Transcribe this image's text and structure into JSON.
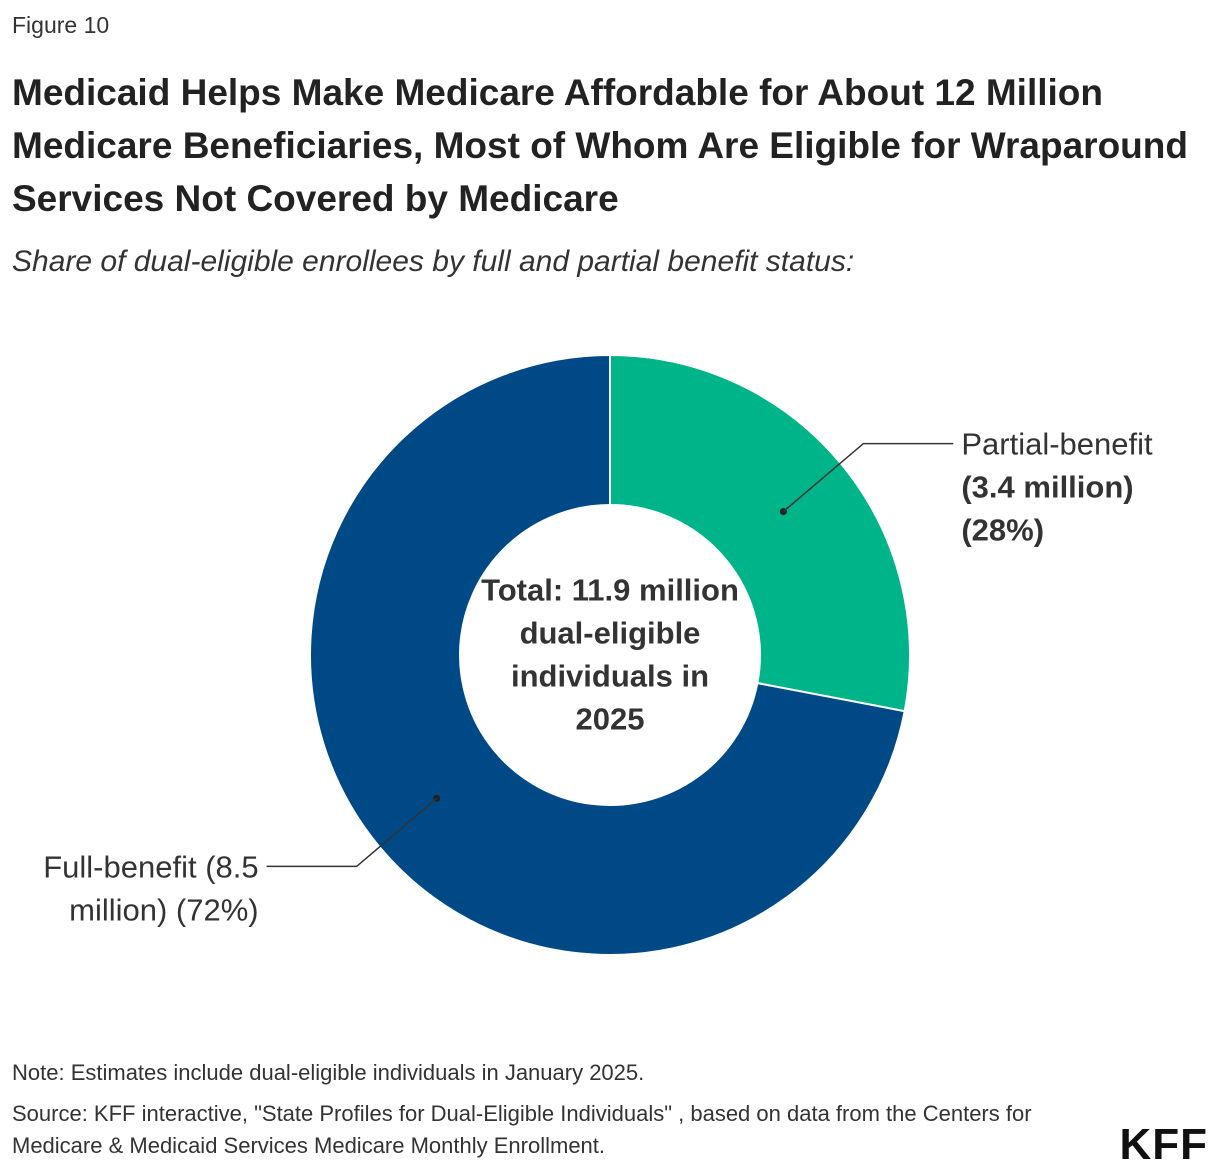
{
  "figure_label": "Figure 10",
  "title": "Medicaid Helps Make Medicare Affordable for About 12 Million Medicare Beneficiaries, Most of Whom Are Eligible for Wraparound Services Not Covered by Medicare",
  "subtitle": "Share of dual-eligible enrollees by full and partial benefit status:",
  "chart_data": {
    "type": "pie",
    "variant": "donut",
    "center_label": [
      "Total: 11.9 million",
      "dual-eligible",
      "individuals in",
      "2025"
    ],
    "slices": [
      {
        "name": "Partial-benefit",
        "value_millions": 3.4,
        "percent": 28,
        "label_lines": [
          "Partial-benefit",
          "(3.4 million)",
          "(28%)"
        ],
        "color": "#00b48a"
      },
      {
        "name": "Full-benefit",
        "value_millions": 8.5,
        "percent": 72,
        "label_lines": [
          "Full-benefit (8.5",
          "million) (72%)"
        ],
        "color": "#004987"
      }
    ]
  },
  "footer": {
    "note": "Note: Estimates include dual-eligible individuals in January 2025.",
    "source": "Source: KFF interactive, \"State Profiles for Dual-Eligible Individuals\" , based on data from the Centers for Medicare & Medicaid Services Medicare Monthly Enrollment.",
    "logo": "KFF"
  }
}
